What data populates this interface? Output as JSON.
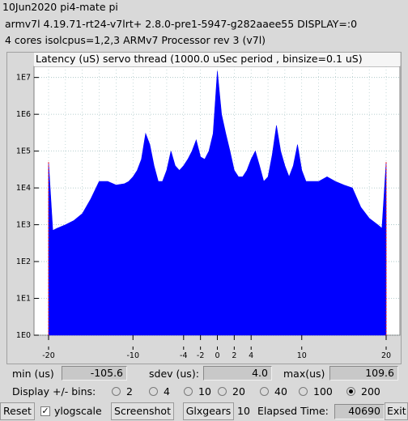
{
  "header": {
    "line1": "10Jun2020 pi4-mate pi",
    "line2": "armv7l  4.19.71-rt24-v7lrt+  2.8.0-pre1-5947-g282aaee55  DISPLAY=:0",
    "line3": "4 cores  isolcpus=1,2,3    ARMv7 Processor rev 3 (v7l)"
  },
  "chart_title": "Latency (uS) servo thread (1000.0 uSec period , binsize=0.1 uS)",
  "chart_data": {
    "type": "area",
    "title": "Latency (uS) servo thread (1000.0 uSec period , binsize=0.1 uS)",
    "y_scale": "log",
    "y_ticks": [
      "1E0",
      "1E1",
      "1E2",
      "1E3",
      "1E4",
      "1E5",
      "1E6",
      "1E7"
    ],
    "x_ticks": [
      "-20",
      "-10",
      "-4",
      "-2",
      "0",
      "2",
      "4",
      "10",
      "20"
    ],
    "xlim": [
      -20,
      20
    ],
    "ylim": [
      1,
      20000000
    ],
    "series_color": "#0000ff",
    "grid": true,
    "x": [
      -20,
      -19.5,
      -19,
      -18,
      -17,
      -16,
      -15,
      -14,
      -13,
      -12,
      -11,
      -10.5,
      -10,
      -9.5,
      -9,
      -8.5,
      -8,
      -7.5,
      -7,
      -6.5,
      -6,
      -5.5,
      -5,
      -4.5,
      -4,
      -3.5,
      -3,
      -2.5,
      -2,
      -1.5,
      -1,
      -0.5,
      0,
      0.5,
      1,
      1.5,
      2,
      2.5,
      3,
      3.5,
      4,
      4.5,
      5,
      5.5,
      6,
      6.5,
      7,
      7.5,
      8,
      8.5,
      9,
      9.5,
      10,
      10.5,
      11,
      12,
      13,
      14,
      15,
      16,
      17,
      18,
      19,
      19.5,
      20
    ],
    "y": [
      50000,
      700,
      800,
      1000,
      1300,
      2000,
      5000,
      15000,
      15000,
      12000,
      13000,
      15000,
      20000,
      30000,
      60000,
      300000,
      150000,
      40000,
      15000,
      15000,
      30000,
      100000,
      40000,
      30000,
      40000,
      60000,
      100000,
      200000,
      70000,
      60000,
      100000,
      300000,
      15000000,
      1000000,
      300000,
      100000,
      30000,
      20000,
      20000,
      30000,
      60000,
      100000,
      40000,
      15000,
      20000,
      80000,
      500000,
      100000,
      40000,
      20000,
      40000,
      150000,
      30000,
      15000,
      15000,
      15000,
      20000,
      15000,
      12000,
      10000,
      3000,
      1500,
      1000,
      800,
      50000
    ]
  },
  "stats": {
    "min_label": "min (us)",
    "min_value": "-105.6",
    "sdev_label": "sdev (us):",
    "sdev_value": "4.0",
    "max_label": "max(us)",
    "max_value": "109.6"
  },
  "bins": {
    "label": "Display +/- bins:",
    "options": [
      "2",
      "4",
      "10",
      "20",
      "40",
      "100",
      "200"
    ],
    "selected": "200"
  },
  "toolbar": {
    "reset_label": "Reset",
    "ylogscale_label": "ylogscale",
    "ylogscale_checked": true,
    "screenshot_label": "Screenshot",
    "glxgears_label": "Glxgears",
    "glxgears_count": "10",
    "elapsed_label": "Elapsed Time:",
    "elapsed_value": "40690",
    "exit_label": "Exit"
  }
}
